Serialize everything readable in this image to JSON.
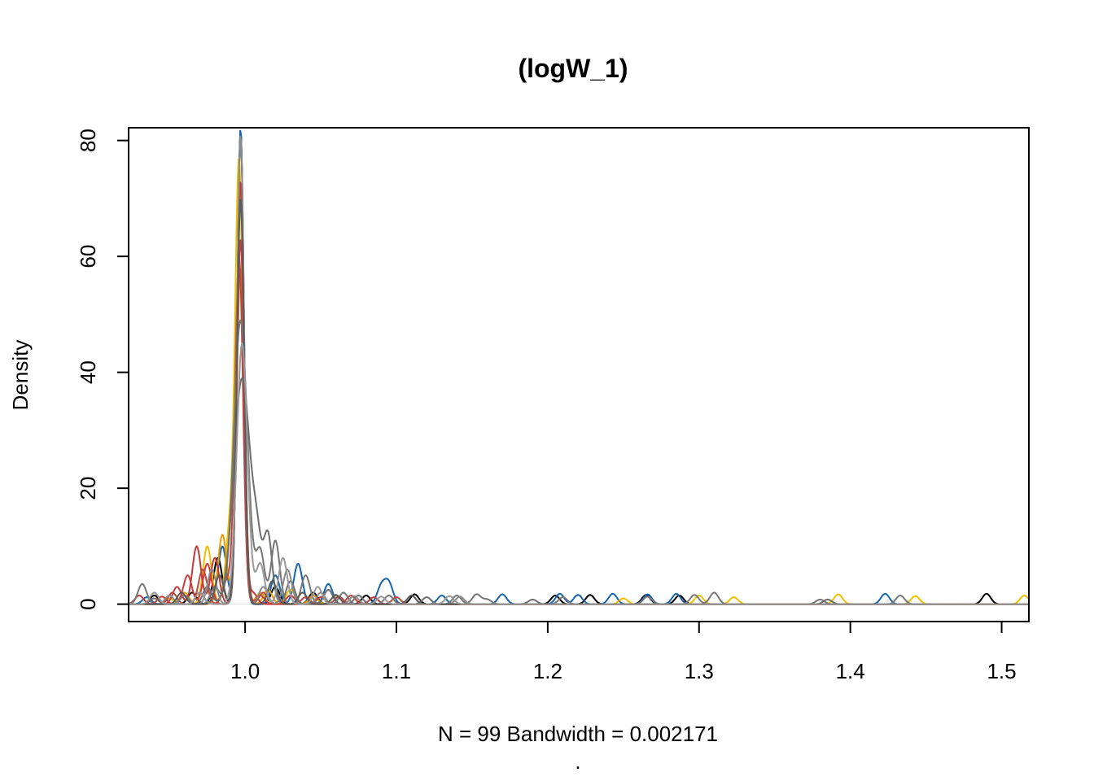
{
  "chart_data": {
    "type": "line",
    "title": "(logW_1)",
    "xlabel": "N = 99   Bandwidth = 0.002171",
    "sub": ".",
    "ylabel": "Density",
    "xlim": [
      0.923,
      1.518
    ],
    "ylim": [
      -3.0,
      82.2
    ],
    "x_ticks": [
      1.0,
      1.1,
      1.2,
      1.3,
      1.4,
      1.5
    ],
    "x_tick_labels": [
      "1.0",
      "1.1",
      "1.2",
      "1.3",
      "1.4",
      "1.5"
    ],
    "y_ticks": [
      0,
      20,
      40,
      60,
      80
    ],
    "y_tick_labels": [
      "0",
      "20",
      "40",
      "60",
      "80"
    ],
    "grid": false,
    "legend": "none",
    "baseline": 0,
    "series": [
      {
        "color": "#000000",
        "peak_x": 0.997,
        "peak_y": 82,
        "peak_width": 0.0022,
        "bumps": [
          [
            0.94,
            1.5
          ],
          [
            0.965,
            2
          ],
          [
            0.982,
            8
          ],
          [
            1.02,
            3
          ],
          [
            1.045,
            2
          ],
          [
            1.08,
            1.5
          ],
          [
            1.112,
            1.7
          ],
          [
            1.205,
            1.5
          ],
          [
            1.228,
            1.6
          ],
          [
            1.265,
            1.6
          ],
          [
            1.287,
            1.5
          ],
          [
            1.49,
            1.8
          ]
        ]
      },
      {
        "color": "#1565b0",
        "peak_x": 0.997,
        "peak_y": 82,
        "peak_width": 0.0022,
        "bumps": [
          [
            0.935,
            1.2
          ],
          [
            0.97,
            2
          ],
          [
            0.985,
            10
          ],
          [
            1.02,
            5
          ],
          [
            1.035,
            7
          ],
          [
            1.055,
            3.5
          ],
          [
            1.09,
            3
          ],
          [
            1.095,
            3.5
          ],
          [
            1.13,
            1.5
          ],
          [
            1.17,
            1.7
          ],
          [
            1.208,
            1.8
          ],
          [
            1.22,
            1.6
          ],
          [
            1.243,
            1.8
          ],
          [
            1.266,
            1.7
          ],
          [
            1.285,
            1.8
          ],
          [
            1.423,
            1.8
          ]
        ]
      },
      {
        "color": "#f0c000",
        "peak_x": 0.996,
        "peak_y": 76,
        "peak_width": 0.0025,
        "bumps": [
          [
            0.95,
            1
          ],
          [
            0.975,
            10
          ],
          [
            0.99,
            13
          ],
          [
            1.01,
            2
          ],
          [
            1.03,
            2.5
          ],
          [
            1.06,
            1.5
          ],
          [
            1.1,
            1.2
          ],
          [
            1.25,
            1
          ],
          [
            1.3,
            1.5
          ],
          [
            1.323,
            1.2
          ],
          [
            1.392,
            1.7
          ],
          [
            1.443,
            1.4
          ],
          [
            1.515,
            1.5
          ]
        ]
      },
      {
        "color": "#ed9c00",
        "peak_x": 0.997,
        "peak_y": 58,
        "peak_width": 0.0026,
        "bumps": [
          [
            0.96,
            2
          ],
          [
            0.985,
            12
          ],
          [
            1.015,
            2.5
          ],
          [
            1.045,
            1.5
          ]
        ]
      },
      {
        "color": "#c23b3b",
        "peak_x": 0.997,
        "peak_y": 73,
        "peak_width": 0.0023,
        "bumps": [
          [
            0.93,
            1.5
          ],
          [
            0.955,
            3
          ],
          [
            0.968,
            10
          ],
          [
            0.98,
            8
          ],
          [
            1.005,
            2
          ],
          [
            1.03,
            1.5
          ],
          [
            1.05,
            1.2
          ],
          [
            1.07,
            1.5
          ],
          [
            1.085,
            1.2
          ]
        ]
      },
      {
        "color": "#d23a3a",
        "peak_x": 0.997,
        "peak_y": 63,
        "peak_width": 0.0025,
        "bumps": [
          [
            0.945,
            1.3
          ],
          [
            0.962,
            5
          ],
          [
            0.975,
            7
          ],
          [
            1.01,
            1.5
          ],
          [
            1.04,
            1.2
          ]
        ]
      },
      {
        "color": "#b84848",
        "peak_x": 0.996,
        "peak_y": 60,
        "peak_width": 0.0026,
        "bumps": [
          [
            0.952,
            2
          ],
          [
            0.972,
            6
          ],
          [
            0.988,
            4
          ],
          [
            1.012,
            2
          ],
          [
            1.062,
            1.3
          ],
          [
            1.1,
            1.2
          ]
        ]
      },
      {
        "color": "#777777",
        "peak_x": 0.997,
        "peak_y": 49,
        "peak_width": 0.0045,
        "bumps": [
          [
            0.932,
            3.5
          ],
          [
            0.96,
            1.5
          ],
          [
            0.98,
            3
          ],
          [
            1.01,
            9
          ],
          [
            1.02,
            11
          ],
          [
            1.04,
            5
          ],
          [
            1.065,
            2
          ],
          [
            1.095,
            1.5
          ],
          [
            1.14,
            1.5
          ],
          [
            1.153,
            1.7
          ],
          [
            1.16,
            0.8
          ],
          [
            1.21,
            1.2
          ],
          [
            1.266,
            1.3
          ],
          [
            1.297,
            1.6
          ],
          [
            1.31,
            2
          ],
          [
            1.38,
            0.8
          ],
          [
            1.433,
            1.5
          ]
        ]
      },
      {
        "color": "#6e6e6e",
        "peak_x": 0.998,
        "peak_y": 39,
        "peak_width": 0.0055,
        "bumps": [
          [
            0.94,
            1
          ],
          [
            0.975,
            3
          ],
          [
            1.008,
            8
          ],
          [
            1.015,
            12
          ],
          [
            1.03,
            4
          ],
          [
            1.055,
            2.5
          ],
          [
            1.075,
            1.5
          ],
          [
            1.12,
            1.2
          ],
          [
            1.19,
            0.8
          ],
          [
            1.385,
            0.8
          ]
        ]
      },
      {
        "color": "#8a8a8a",
        "peak_x": 0.997,
        "peak_y": 81,
        "peak_width": 0.0023,
        "bumps": [
          [
            0.95,
            1.5
          ],
          [
            0.978,
            6
          ],
          [
            1.012,
            3
          ],
          [
            1.028,
            6
          ],
          [
            1.05,
            2
          ],
          [
            1.072,
            1.4
          ],
          [
            1.142,
            1.3
          ]
        ]
      },
      {
        "color": "#5a5a5a",
        "peak_x": 0.997,
        "peak_y": 70,
        "peak_width": 0.0024,
        "bumps": [
          [
            0.958,
            2
          ],
          [
            0.983,
            5
          ],
          [
            1.018,
            4
          ],
          [
            1.038,
            2
          ],
          [
            1.06,
            1.6
          ],
          [
            1.11,
            1.5
          ]
        ]
      },
      {
        "color": "#999999",
        "peak_x": 0.998,
        "peak_y": 45,
        "peak_width": 0.0035,
        "bumps": [
          [
            0.94,
            2
          ],
          [
            0.97,
            2
          ],
          [
            1.01,
            7
          ],
          [
            1.025,
            8
          ],
          [
            1.048,
            3
          ],
          [
            1.09,
            1.3
          ],
          [
            1.135,
            1.4
          ]
        ]
      }
    ]
  }
}
